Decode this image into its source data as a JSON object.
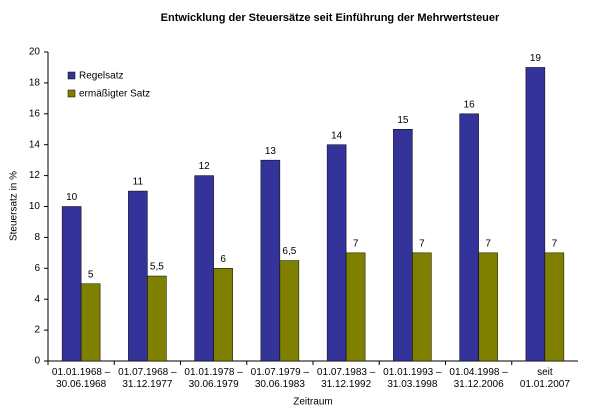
{
  "chart_data": {
    "type": "bar",
    "title": "Entwicklung der Steuersätze seit Einführung der Mehrwertsteuer",
    "x_label": "Zeitraum",
    "y_label": "Steuersatz in %",
    "categories": [
      "01.01.1968 – 30.06.1968",
      "01.07.1968 – 31.12.1977",
      "01.01.1978 – 30.06.1979",
      "01.07.1979 – 30.06.1983",
      "01.07.1983 – 31.12.1992",
      "01.01.1993 – 31.03.1998",
      "01.04.1998 – 31.12.2006",
      "seit 01.01.2007"
    ],
    "series": [
      {
        "name": "Regelsatz",
        "color": "#333399",
        "values": [
          10,
          11,
          12,
          13,
          14,
          15,
          16,
          19
        ]
      },
      {
        "name": "ermäßigter Satz",
        "color": "#808000",
        "values": [
          5,
          5.5,
          6,
          6.5,
          7,
          7,
          7,
          7
        ],
        "value_labels": [
          "5",
          "5,5",
          "6",
          "6,5",
          "7",
          "7",
          "7",
          "7"
        ]
      }
    ],
    "ylim": [
      0,
      20
    ],
    "yticks": [
      0,
      2,
      4,
      6,
      8,
      10,
      12,
      14,
      16,
      18,
      20
    ],
    "grid": false,
    "legend": "upper left"
  }
}
